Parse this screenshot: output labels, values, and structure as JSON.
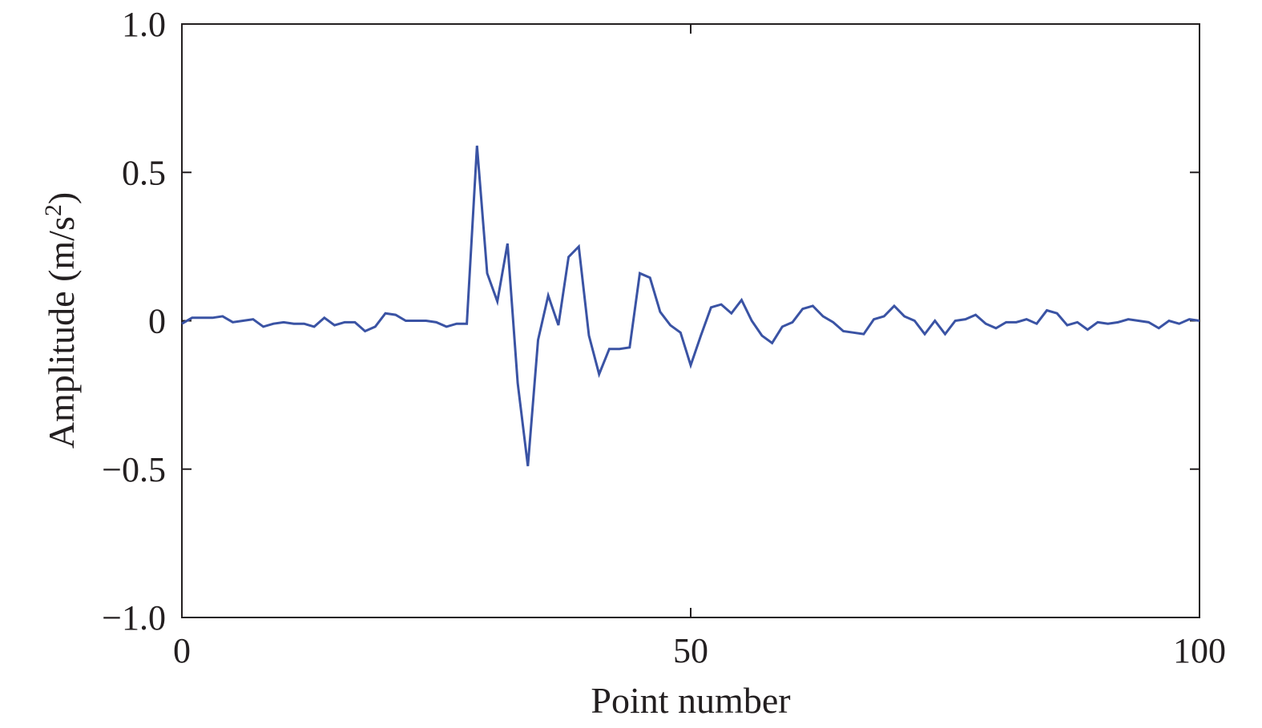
{
  "chart_data": {
    "type": "line",
    "title": "",
    "xlabel": "Point number",
    "ylabel": "Amplitude (m/s",
    "ylabel_superscript": "2",
    "ylabel_suffix": ")",
    "xlim": [
      0,
      100
    ],
    "ylim": [
      -1.0,
      1.0
    ],
    "x_ticks": [
      0,
      50,
      100
    ],
    "x_tick_labels": [
      "0",
      "50",
      "100"
    ],
    "y_ticks": [
      -1.0,
      -0.5,
      0,
      0.5,
      1.0
    ],
    "y_tick_labels": [
      "−1.0",
      "−0.5",
      "0",
      "0.5",
      "1.0"
    ],
    "grid": false,
    "series": [
      {
        "color": "#3a53a4",
        "x": [
          0,
          1,
          2,
          3,
          4,
          5,
          6,
          7,
          8,
          9,
          10,
          11,
          12,
          13,
          14,
          15,
          16,
          17,
          18,
          19,
          20,
          21,
          22,
          23,
          24,
          25,
          26,
          27,
          28,
          29,
          30,
          31,
          32,
          33,
          34,
          35,
          36,
          37,
          38,
          39,
          40,
          41,
          42,
          43,
          44,
          45,
          46,
          47,
          48,
          49,
          50,
          51,
          52,
          53,
          54,
          55,
          56,
          57,
          58,
          59,
          60,
          61,
          62,
          63,
          64,
          65,
          66,
          67,
          68,
          69,
          70,
          71,
          72,
          73,
          74,
          75,
          76,
          77,
          78,
          79,
          80,
          81,
          82,
          83,
          84,
          85,
          86,
          87,
          88,
          89,
          90,
          91,
          92,
          93,
          94,
          95,
          96,
          97,
          98,
          99,
          100
        ],
        "y": [
          -0.01,
          0.01,
          0.01,
          0.01,
          0.015,
          -0.005,
          0.0,
          0.005,
          -0.02,
          -0.01,
          -0.005,
          -0.01,
          -0.01,
          -0.02,
          0.01,
          -0.015,
          -0.005,
          -0.005,
          -0.035,
          -0.02,
          0.025,
          0.02,
          0.0,
          0.0,
          0.0,
          -0.005,
          -0.02,
          -0.01,
          -0.01,
          0.59,
          0.16,
          0.065,
          0.26,
          -0.21,
          -0.49,
          -0.065,
          0.085,
          -0.015,
          0.215,
          0.25,
          -0.05,
          -0.18,
          -0.095,
          -0.095,
          -0.09,
          0.16,
          0.145,
          0.03,
          -0.015,
          -0.04,
          -0.15,
          -0.05,
          0.045,
          0.055,
          0.025,
          0.07,
          0.0,
          -0.05,
          -0.075,
          -0.02,
          -0.005,
          0.04,
          0.05,
          0.015,
          -0.005,
          -0.035,
          -0.04,
          -0.045,
          0.005,
          0.015,
          0.05,
          0.015,
          0.0,
          -0.045,
          0.0,
          -0.045,
          0.0,
          0.005,
          0.02,
          -0.01,
          -0.025,
          -0.005,
          -0.005,
          0.005,
          -0.01,
          0.035,
          0.025,
          -0.015,
          -0.005,
          -0.03,
          -0.005,
          -0.01,
          -0.005,
          0.005,
          0.0,
          -0.005,
          -0.025,
          0.0,
          -0.01,
          0.005,
          0.0
        ]
      }
    ]
  }
}
